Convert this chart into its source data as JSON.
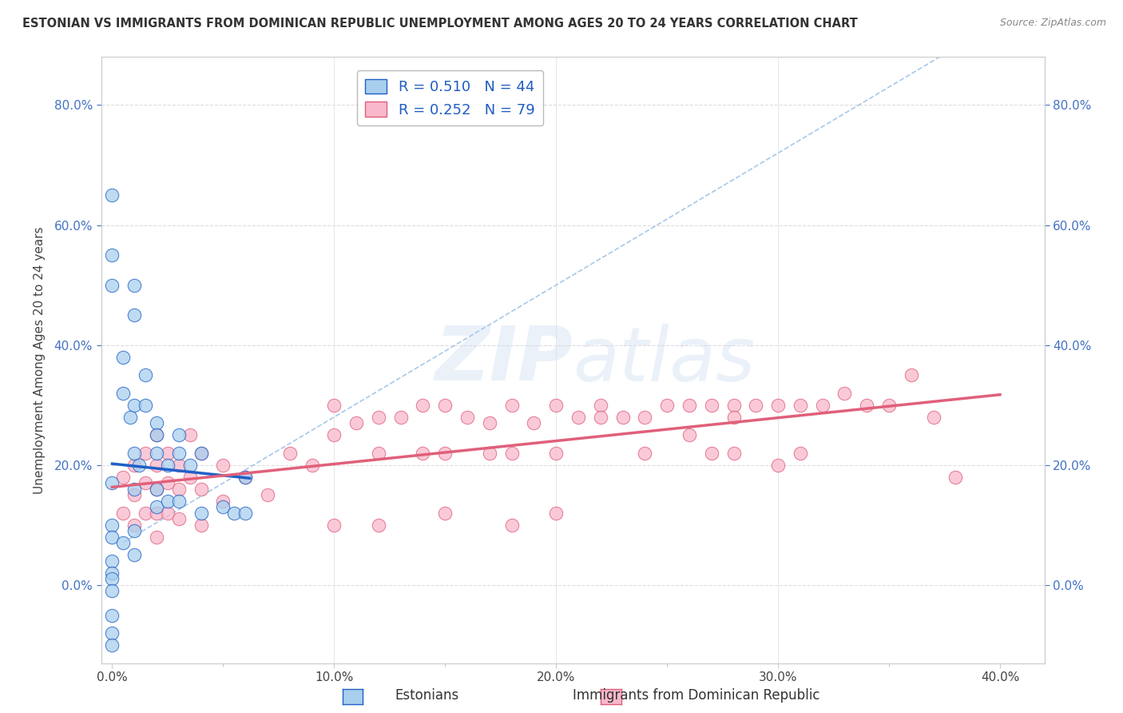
{
  "title": "ESTONIAN VS IMMIGRANTS FROM DOMINICAN REPUBLIC UNEMPLOYMENT AMONG AGES 20 TO 24 YEARS CORRELATION CHART",
  "source": "Source: ZipAtlas.com",
  "ylabel_left": "Unemployment Among Ages 20 to 24 years",
  "x_tick_labels": [
    "0.0%",
    "",
    "10.0%",
    "",
    "20.0%",
    "",
    "30.0%",
    "",
    "40.0%"
  ],
  "x_tick_values": [
    0,
    0.05,
    0.1,
    0.15,
    0.2,
    0.25,
    0.3,
    0.35,
    0.4
  ],
  "y_tick_labels": [
    "0.0%",
    "20.0%",
    "40.0%",
    "60.0%",
    "80.0%"
  ],
  "y_tick_values": [
    0.0,
    0.2,
    0.4,
    0.6,
    0.8
  ],
  "xlim": [
    -0.005,
    0.42
  ],
  "ylim": [
    -0.13,
    0.88
  ],
  "r_estonian": 0.51,
  "n_estonian": 44,
  "r_dominican": 0.252,
  "n_dominican": 79,
  "legend_labels": [
    "Estonians",
    "Immigrants from Dominican Republic"
  ],
  "color_estonian": "#A8CFED",
  "color_dominican": "#F9B8CC",
  "line_color_estonian": "#2060C8",
  "line_color_dominican": "#E0607A",
  "ref_line_color": "#A8C8E8",
  "watermark_zip": "ZIP",
  "watermark_atlas": "atlas",
  "background_color": "#FFFFFF",
  "est_x": [
    0.0,
    0.0,
    0.0,
    0.0,
    0.0,
    0.0,
    0.0,
    0.0,
    0.0,
    0.0,
    0.0,
    0.0,
    0.0,
    0.005,
    0.005,
    0.005,
    0.01,
    0.01,
    0.01,
    0.01,
    0.01,
    0.01,
    0.01,
    0.015,
    0.015,
    0.02,
    0.02,
    0.02,
    0.02,
    0.02,
    0.025,
    0.025,
    0.03,
    0.03,
    0.03,
    0.035,
    0.04,
    0.04,
    0.05,
    0.055,
    0.06,
    0.06,
    0.008,
    0.012
  ],
  "est_y": [
    0.65,
    0.55,
    0.5,
    0.17,
    0.1,
    0.08,
    0.04,
    0.02,
    0.01,
    -0.01,
    -0.05,
    -0.08,
    -0.1,
    0.38,
    0.32,
    0.07,
    0.5,
    0.45,
    0.3,
    0.22,
    0.16,
    0.09,
    0.05,
    0.35,
    0.3,
    0.27,
    0.25,
    0.22,
    0.16,
    0.13,
    0.2,
    0.14,
    0.25,
    0.22,
    0.14,
    0.2,
    0.22,
    0.12,
    0.13,
    0.12,
    0.18,
    0.12,
    0.28,
    0.2
  ],
  "dom_x": [
    0.005,
    0.005,
    0.01,
    0.01,
    0.01,
    0.015,
    0.015,
    0.015,
    0.02,
    0.02,
    0.02,
    0.02,
    0.02,
    0.025,
    0.025,
    0.025,
    0.03,
    0.03,
    0.03,
    0.035,
    0.035,
    0.04,
    0.04,
    0.04,
    0.05,
    0.05,
    0.06,
    0.07,
    0.08,
    0.09,
    0.1,
    0.1,
    0.11,
    0.12,
    0.12,
    0.13,
    0.14,
    0.14,
    0.15,
    0.15,
    0.16,
    0.17,
    0.17,
    0.18,
    0.18,
    0.19,
    0.2,
    0.2,
    0.21,
    0.22,
    0.23,
    0.24,
    0.25,
    0.26,
    0.27,
    0.27,
    0.28,
    0.28,
    0.29,
    0.3,
    0.3,
    0.31,
    0.31,
    0.32,
    0.33,
    0.34,
    0.35,
    0.36,
    0.37,
    0.38,
    0.22,
    0.24,
    0.26,
    0.28,
    0.1,
    0.12,
    0.15,
    0.18,
    0.2
  ],
  "dom_y": [
    0.18,
    0.12,
    0.2,
    0.15,
    0.1,
    0.22,
    0.17,
    0.12,
    0.25,
    0.2,
    0.16,
    0.12,
    0.08,
    0.22,
    0.17,
    0.12,
    0.2,
    0.16,
    0.11,
    0.25,
    0.18,
    0.22,
    0.16,
    0.1,
    0.2,
    0.14,
    0.18,
    0.15,
    0.22,
    0.2,
    0.3,
    0.25,
    0.27,
    0.28,
    0.22,
    0.28,
    0.3,
    0.22,
    0.3,
    0.22,
    0.28,
    0.27,
    0.22,
    0.3,
    0.22,
    0.27,
    0.3,
    0.22,
    0.28,
    0.3,
    0.28,
    0.28,
    0.3,
    0.3,
    0.3,
    0.22,
    0.3,
    0.22,
    0.3,
    0.3,
    0.2,
    0.3,
    0.22,
    0.3,
    0.32,
    0.3,
    0.3,
    0.35,
    0.28,
    0.18,
    0.28,
    0.22,
    0.25,
    0.28,
    0.1,
    0.1,
    0.12,
    0.1,
    0.12
  ]
}
